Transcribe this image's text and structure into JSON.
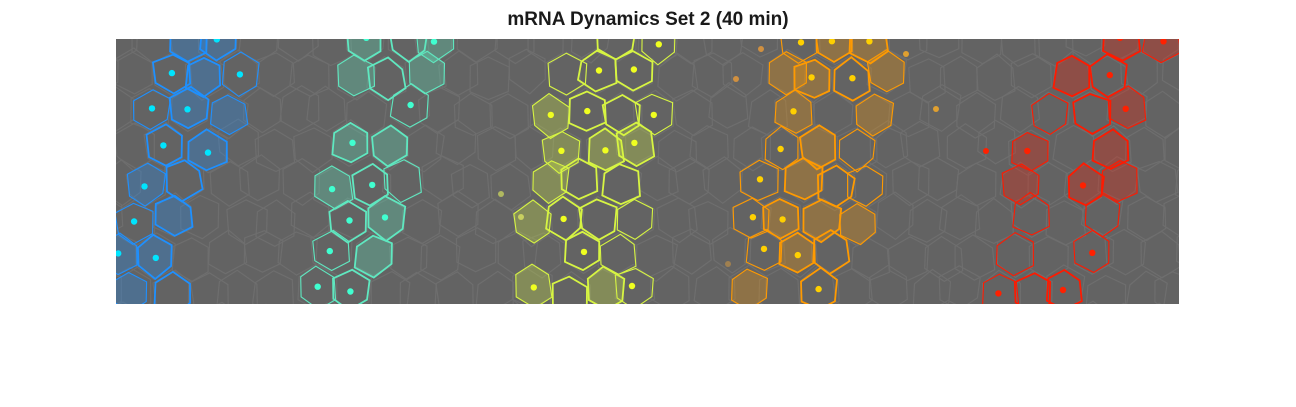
{
  "figure": {
    "title": "mRNA Dynamics Set 2 (40 min)"
  },
  "image": {
    "description_name": "tissue-cell-segmentation",
    "background_color": "#636363",
    "cell_edge_color": "#6e6e6e",
    "stripes": [
      {
        "name": "blue",
        "color": "#1e90ff",
        "dot_color": "#00e5ff"
      },
      {
        "name": "cyan",
        "color": "#5fe8c0",
        "dot_color": "#40ffd0"
      },
      {
        "name": "yellow-green",
        "color": "#d7f542",
        "dot_color": "#f0ff20"
      },
      {
        "name": "orange",
        "color": "#ff9a00",
        "dot_color": "#ffd000"
      },
      {
        "name": "red",
        "color": "#ff1a00",
        "dot_color": "#ff2000"
      }
    ]
  }
}
